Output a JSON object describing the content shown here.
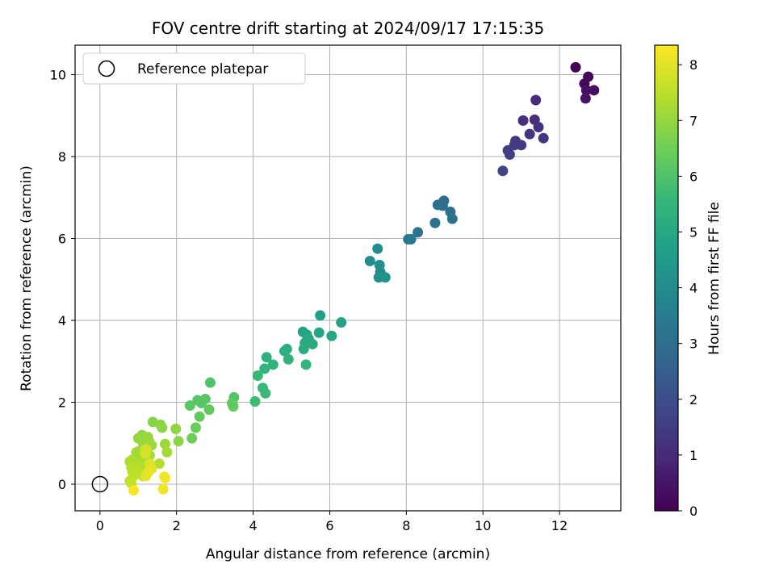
{
  "chart_data": {
    "type": "scatter",
    "title": "FOV centre drift starting at 2024/09/17 17:15:35",
    "xlabel": "Angular distance from reference (arcmin)",
    "ylabel": "Rotation from reference (arcmin)",
    "xlim": [
      -0.65,
      13.6
    ],
    "ylim": [
      -0.65,
      10.72
    ],
    "xticks": [
      0,
      2,
      4,
      6,
      8,
      10,
      12
    ],
    "yticks": [
      0,
      2,
      4,
      6,
      8,
      10
    ],
    "grid": true,
    "legend": {
      "placement": "top-left",
      "entries": [
        "Reference platepar"
      ]
    },
    "reference_point": {
      "x": 0,
      "y": 0
    },
    "colorbar": {
      "label": "Hours from first FF file",
      "range": [
        0,
        8.35
      ],
      "ticks": [
        0,
        1,
        2,
        3,
        4,
        5,
        6,
        7,
        8
      ],
      "colormap": "viridis"
    },
    "colors": {
      "viridis": [
        "#440154",
        "#482878",
        "#3e4989",
        "#31688e",
        "#26828e",
        "#1f9e89",
        "#35b779",
        "#6ece58",
        "#b5de2b",
        "#fde725"
      ]
    },
    "points": [
      [
        12.42,
        10.18,
        0.05
      ],
      [
        12.75,
        9.95,
        0.12
      ],
      [
        12.65,
        9.78,
        0.2
      ],
      [
        12.9,
        9.62,
        0.28
      ],
      [
        12.7,
        9.62,
        0.35
      ],
      [
        12.68,
        9.42,
        0.42
      ],
      [
        11.38,
        9.38,
        1.05
      ],
      [
        11.35,
        8.9,
        1.1
      ],
      [
        11.05,
        8.88,
        1.15
      ],
      [
        11.45,
        8.72,
        1.2
      ],
      [
        11.22,
        8.55,
        1.28
      ],
      [
        11.58,
        8.45,
        1.35
      ],
      [
        10.85,
        8.38,
        1.4
      ],
      [
        11.0,
        8.28,
        1.45
      ],
      [
        10.82,
        8.28,
        1.5
      ],
      [
        10.65,
        8.15,
        1.55
      ],
      [
        10.7,
        8.05,
        1.6
      ],
      [
        10.52,
        7.65,
        1.68
      ],
      [
        8.98,
        6.92,
        2.9
      ],
      [
        8.82,
        6.82,
        2.95
      ],
      [
        8.95,
        6.8,
        3.0
      ],
      [
        9.15,
        6.65,
        3.05
      ],
      [
        9.2,
        6.48,
        3.1
      ],
      [
        8.75,
        6.38,
        3.15
      ],
      [
        8.3,
        6.15,
        3.2
      ],
      [
        8.12,
        5.98,
        3.28
      ],
      [
        8.05,
        5.98,
        3.35
      ],
      [
        7.25,
        5.75,
        4.0
      ],
      [
        7.05,
        5.45,
        4.05
      ],
      [
        7.3,
        5.35,
        4.1
      ],
      [
        7.32,
        5.18,
        4.15
      ],
      [
        7.28,
        5.05,
        4.2
      ],
      [
        7.45,
        5.05,
        4.25
      ],
      [
        5.75,
        4.12,
        4.7
      ],
      [
        6.3,
        3.95,
        4.75
      ],
      [
        5.3,
        3.72,
        4.8
      ],
      [
        5.4,
        3.65,
        4.85
      ],
      [
        5.72,
        3.7,
        4.9
      ],
      [
        6.05,
        3.62,
        4.95
      ],
      [
        5.45,
        3.55,
        5.0
      ],
      [
        5.35,
        3.45,
        5.05
      ],
      [
        5.55,
        3.42,
        5.1
      ],
      [
        5.32,
        3.3,
        5.15
      ],
      [
        4.88,
        3.3,
        5.2
      ],
      [
        4.82,
        3.25,
        5.25
      ],
      [
        4.35,
        3.1,
        5.3
      ],
      [
        4.92,
        3.05,
        5.35
      ],
      [
        4.52,
        2.92,
        5.4
      ],
      [
        5.38,
        2.92,
        5.45
      ],
      [
        4.3,
        2.82,
        5.5
      ],
      [
        4.12,
        2.65,
        5.55
      ],
      [
        4.25,
        2.35,
        5.6
      ],
      [
        4.32,
        2.22,
        5.65
      ],
      [
        4.05,
        2.02,
        5.7
      ],
      [
        2.88,
        2.48,
        6.0
      ],
      [
        3.5,
        2.12,
        6.05
      ],
      [
        2.55,
        2.05,
        6.1
      ],
      [
        2.75,
        2.08,
        6.12
      ],
      [
        2.65,
        1.98,
        6.15
      ],
      [
        2.35,
        1.92,
        6.2
      ],
      [
        3.45,
        1.98,
        6.25
      ],
      [
        3.48,
        1.9,
        6.28
      ],
      [
        2.85,
        1.82,
        6.3
      ],
      [
        2.6,
        1.65,
        6.35
      ],
      [
        2.5,
        1.38,
        6.4
      ],
      [
        2.4,
        1.12,
        6.45
      ],
      [
        1.38,
        1.52,
        6.8
      ],
      [
        2.05,
        1.05,
        6.85
      ],
      [
        1.58,
        1.45,
        6.88
      ],
      [
        1.62,
        1.38,
        6.9
      ],
      [
        1.98,
        1.35,
        6.92
      ],
      [
        1.1,
        1.2,
        6.95
      ],
      [
        1.0,
        1.12,
        6.98
      ],
      [
        1.25,
        1.15,
        7.0
      ],
      [
        1.28,
        1.05,
        7.02
      ],
      [
        1.12,
        1.02,
        7.05
      ],
      [
        1.7,
        0.98,
        7.08
      ],
      [
        1.35,
        0.95,
        7.1
      ],
      [
        1.22,
        0.88,
        7.12
      ],
      [
        1.05,
        0.82,
        7.15
      ],
      [
        0.95,
        0.78,
        7.18
      ],
      [
        1.75,
        0.78,
        7.2
      ],
      [
        1.15,
        0.72,
        7.22
      ],
      [
        1.3,
        0.7,
        7.25
      ],
      [
        0.85,
        0.6,
        7.28
      ],
      [
        0.78,
        0.55,
        7.3
      ],
      [
        1.05,
        0.55,
        7.32
      ],
      [
        0.92,
        0.5,
        7.35
      ],
      [
        1.55,
        0.5,
        7.38
      ],
      [
        1.25,
        0.48,
        7.4
      ],
      [
        1.08,
        0.45,
        7.42
      ],
      [
        0.82,
        0.4,
        7.45
      ],
      [
        0.85,
        0.3,
        7.48
      ],
      [
        0.98,
        0.28,
        7.5
      ],
      [
        0.88,
        0.2,
        7.52
      ],
      [
        1.12,
        0.2,
        7.55
      ],
      [
        0.78,
        0.08,
        7.58
      ],
      [
        0.82,
        0.02,
        7.6
      ],
      [
        1.2,
        0.85,
        7.8
      ],
      [
        1.18,
        0.75,
        7.85
      ],
      [
        1.3,
        0.5,
        7.9
      ],
      [
        1.35,
        0.38,
        7.95
      ],
      [
        1.2,
        0.2,
        8.0
      ],
      [
        1.28,
        0.32,
        8.05
      ],
      [
        1.7,
        0.15,
        8.1
      ],
      [
        1.65,
        -0.12,
        8.15
      ],
      [
        1.68,
        0.18,
        8.2
      ],
      [
        0.88,
        -0.15,
        8.25
      ]
    ]
  }
}
